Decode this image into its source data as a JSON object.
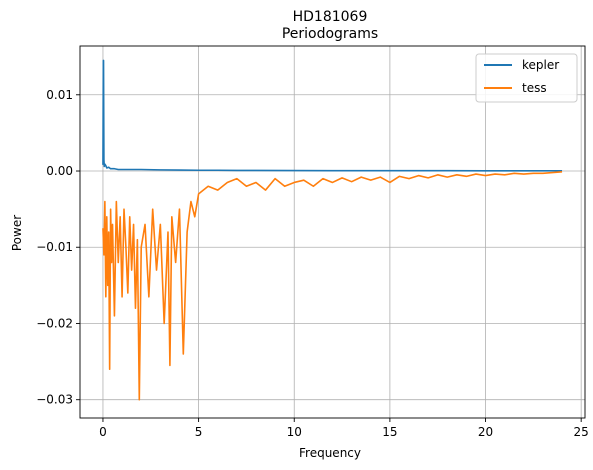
{
  "chart_data": {
    "type": "line",
    "title": "HD181069",
    "subtitle": "Periodograms",
    "xlabel": "Frequency",
    "ylabel": "Power",
    "xlim": [
      -1.2,
      25.2
    ],
    "ylim": [
      -0.0324,
      0.0164
    ],
    "xticks": [
      0,
      5,
      10,
      15,
      20,
      25
    ],
    "yticks": [
      -0.03,
      -0.02,
      -0.01,
      0.0,
      0.01
    ],
    "xtick_labels": [
      "0",
      "5",
      "10",
      "15",
      "20",
      "25"
    ],
    "ytick_labels": [
      "−0.03",
      "−0.02",
      "−0.01",
      "0.00",
      "0.01"
    ],
    "grid": true,
    "legend": "top-right",
    "series": [
      {
        "name": "kepler",
        "color": "#1f77b4",
        "x": [
          0.0,
          0.02,
          0.03,
          0.05,
          0.07,
          0.1,
          0.15,
          0.2,
          0.3,
          0.4,
          0.6,
          0.8,
          1.0,
          1.5,
          2.0,
          3.0,
          4.0,
          5.0,
          6.0,
          7.0,
          8.0,
          10.0,
          12.0,
          15.0,
          18.0,
          20.0,
          22.0,
          24.0
        ],
        "y": [
          0.0008,
          0.0145,
          0.0145,
          0.0015,
          0.0006,
          0.0009,
          0.0007,
          0.0004,
          0.0005,
          0.0003,
          0.0003,
          0.0002,
          0.0002,
          0.0002,
          0.0002,
          0.00015,
          0.00012,
          0.0001,
          0.0001,
          8e-05,
          8e-05,
          6e-05,
          5e-05,
          4e-05,
          4e-05,
          3e-05,
          3e-05,
          2e-05
        ]
      },
      {
        "name": "tess",
        "color": "#ff7f0e",
        "x": [
          0.0,
          0.05,
          0.1,
          0.15,
          0.2,
          0.25,
          0.3,
          0.35,
          0.4,
          0.45,
          0.5,
          0.6,
          0.7,
          0.8,
          0.9,
          1.0,
          1.1,
          1.2,
          1.3,
          1.4,
          1.5,
          1.6,
          1.7,
          1.8,
          1.9,
          2.0,
          2.2,
          2.4,
          2.6,
          2.8,
          3.0,
          3.2,
          3.4,
          3.5,
          3.6,
          3.8,
          4.0,
          4.2,
          4.4,
          4.6,
          4.8,
          5.0,
          5.5,
          6.0,
          6.5,
          7.0,
          7.5,
          8.0,
          8.5,
          9.0,
          9.5,
          10.0,
          10.5,
          11.0,
          11.5,
          12.0,
          12.5,
          13.0,
          13.5,
          14.0,
          14.5,
          15.0,
          15.5,
          16.0,
          16.5,
          17.0,
          17.5,
          18.0,
          18.5,
          19.0,
          19.5,
          20.0,
          20.5,
          21.0,
          21.5,
          22.0,
          22.5,
          23.0,
          23.5,
          24.0
        ],
        "y": [
          -0.0075,
          -0.011,
          -0.004,
          -0.0165,
          -0.006,
          -0.015,
          -0.008,
          -0.026,
          -0.005,
          -0.012,
          -0.007,
          -0.019,
          -0.004,
          -0.012,
          -0.006,
          -0.0165,
          -0.005,
          -0.01,
          -0.016,
          -0.006,
          -0.013,
          -0.007,
          -0.018,
          -0.009,
          -0.03,
          -0.01,
          -0.007,
          -0.0165,
          -0.005,
          -0.013,
          -0.007,
          -0.02,
          -0.008,
          -0.0255,
          -0.006,
          -0.012,
          -0.005,
          -0.024,
          -0.008,
          -0.004,
          -0.006,
          -0.003,
          -0.002,
          -0.0025,
          -0.0015,
          -0.001,
          -0.002,
          -0.0015,
          -0.0025,
          -0.001,
          -0.002,
          -0.0015,
          -0.0012,
          -0.002,
          -0.001,
          -0.0015,
          -0.0009,
          -0.0014,
          -0.0008,
          -0.0012,
          -0.0008,
          -0.0015,
          -0.0007,
          -0.001,
          -0.0006,
          -0.0009,
          -0.0005,
          -0.0008,
          -0.0005,
          -0.0007,
          -0.0004,
          -0.0006,
          -0.0004,
          -0.0005,
          -0.0003,
          -0.0004,
          -0.0003,
          -0.0003,
          -0.0002,
          -0.0001
        ]
      }
    ]
  }
}
